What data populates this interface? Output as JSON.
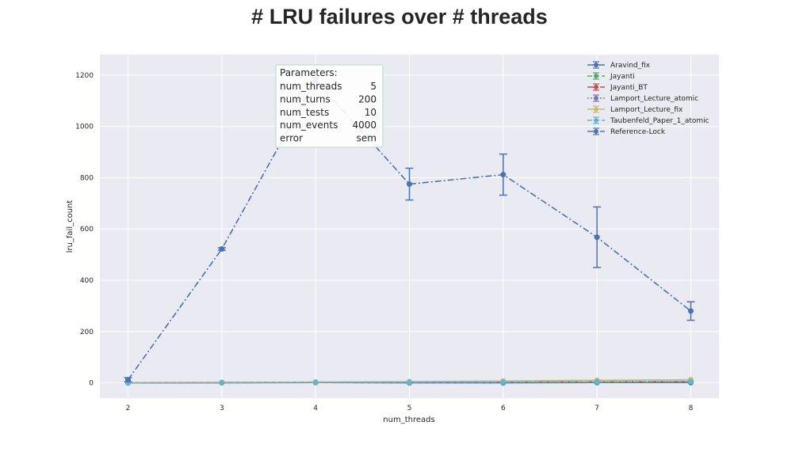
{
  "chart_data": {
    "type": "line",
    "title": "# LRU failures over # threads",
    "xlabel": "num_threads",
    "ylabel": "lru_fail_count",
    "x": [
      2,
      3,
      4,
      5,
      6,
      7,
      8
    ],
    "xlim": [
      1.7,
      8.3
    ],
    "ylim": [
      -60,
      1280
    ],
    "yticks": [
      0,
      200,
      400,
      600,
      800,
      1000,
      1200
    ],
    "grid": true,
    "legend_position": "top-right",
    "series": [
      {
        "name": "Aravind_fix",
        "color": "#4c72b0",
        "linestyle": "solid",
        "marker": "circle",
        "values": [
          0,
          0,
          1,
          0,
          0,
          1,
          1
        ],
        "errors": [
          0,
          0,
          0,
          0,
          0,
          0,
          0
        ]
      },
      {
        "name": "Jayanti",
        "color": "#55a868",
        "linestyle": "dashed",
        "marker": "circle",
        "values": [
          0,
          1,
          2,
          2,
          3,
          4,
          4
        ],
        "errors": [
          0,
          0,
          0,
          0,
          0,
          0,
          0
        ]
      },
      {
        "name": "Jayanti_BT",
        "color": "#c44e52",
        "linestyle": "dashdot",
        "marker": "circle",
        "values": [
          0,
          1,
          2,
          2,
          3,
          4,
          5
        ],
        "errors": [
          0,
          0,
          0,
          0,
          0,
          0,
          0
        ]
      },
      {
        "name": "Lamport_Lecture_atomic",
        "color": "#8172b2",
        "linestyle": "dotted",
        "marker": "circle",
        "values": [
          0,
          1,
          2,
          3,
          4,
          5,
          6
        ],
        "errors": [
          0,
          0,
          0,
          0,
          0,
          0,
          0
        ]
      },
      {
        "name": "Lamport_Lecture_fix",
        "color": "#ccb974",
        "linestyle": "solid",
        "marker": "circle",
        "values": [
          1,
          2,
          3,
          5,
          7,
          10,
          12
        ],
        "errors": [
          0,
          0,
          0,
          0,
          0,
          0,
          0
        ]
      },
      {
        "name": "Taubenfeld_Paper_1_atomic",
        "color": "#64b5cd",
        "linestyle": "dashed",
        "marker": "circle",
        "values": [
          0,
          1,
          2,
          2,
          3,
          4,
          5
        ],
        "errors": [
          0,
          0,
          0,
          0,
          0,
          0,
          0
        ]
      },
      {
        "name": "Reference-Lock",
        "color": "#4c72b0",
        "linestyle": "dashdot",
        "marker": "circle",
        "values": [
          12,
          522,
          1180,
          775,
          812,
          568,
          280
        ],
        "errors": [
          8,
          5,
          10,
          62,
          80,
          118,
          36
        ]
      }
    ],
    "annotation": {
      "title": "Parameters:",
      "rows": [
        {
          "key": "num_threads",
          "value": "5"
        },
        {
          "key": "num_turns",
          "value": "200"
        },
        {
          "key": "num_tests",
          "value": "10"
        },
        {
          "key": "num_events",
          "value": "4000"
        },
        {
          "key": "error",
          "value": "sem"
        }
      ]
    }
  }
}
